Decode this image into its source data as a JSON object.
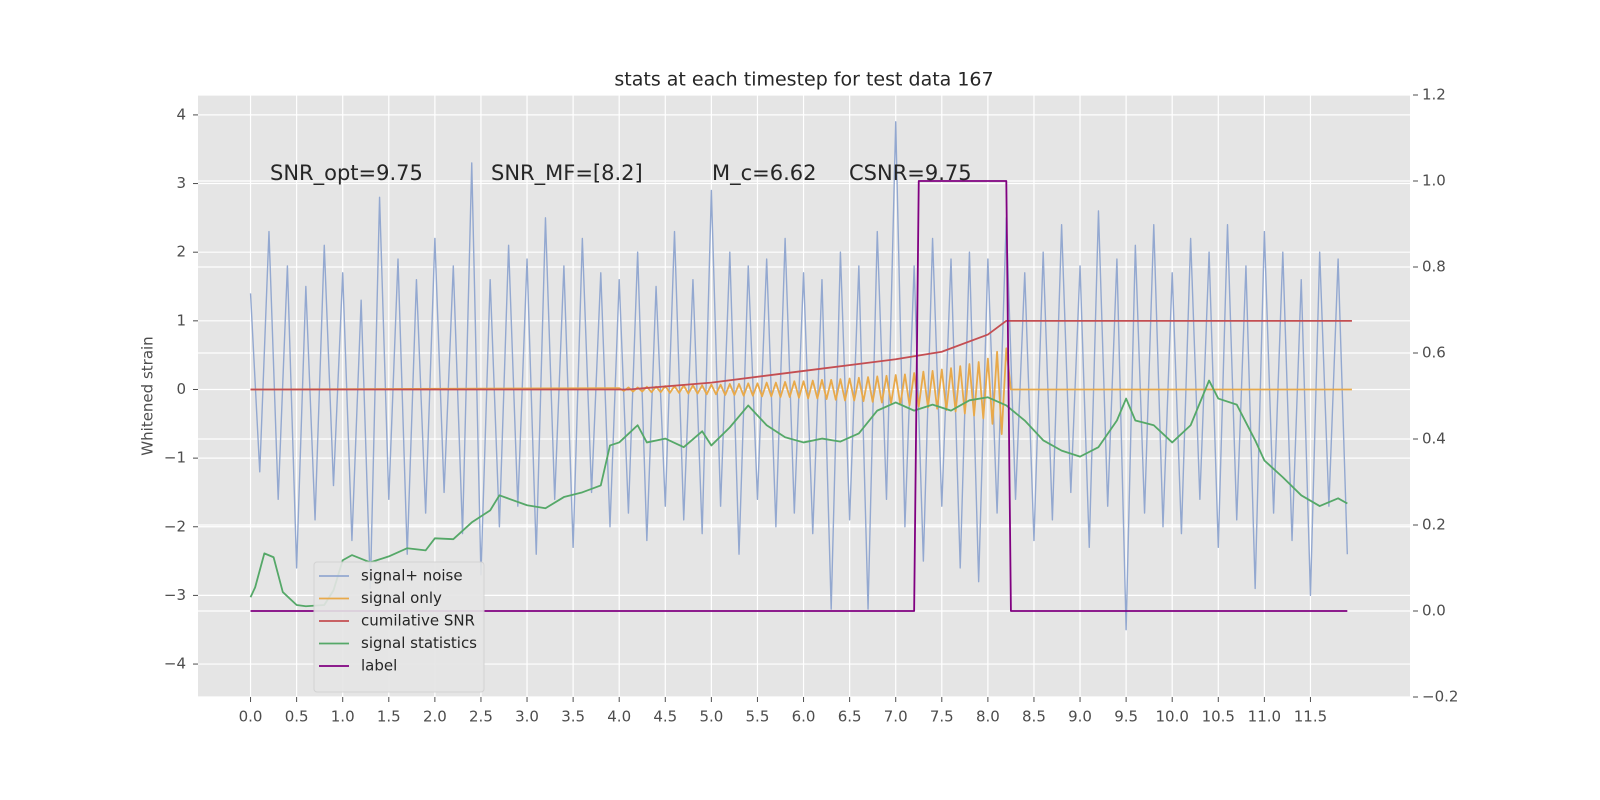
{
  "chart_data": {
    "type": "line",
    "title": "stats at each timestep for test data 167",
    "ylabel": "Whitened strain",
    "annotations": [
      "SNR_opt=9.75",
      "SNR_MF=[8.2]",
      "M_c=6.62",
      "CSNR=9.75"
    ],
    "xlim": [
      -0.57,
      12.58
    ],
    "ylim": [
      -4.48,
      4.29
    ],
    "y2lim": [
      -0.2,
      1.2
    ],
    "xticks": [
      {
        "value": 0,
        "label": "0.0"
      },
      0.5,
      {
        "value": 1,
        "label": "1.0"
      },
      1.5,
      {
        "value": 2,
        "label": "2.0"
      },
      2.5,
      {
        "value": 3,
        "label": "3.0"
      },
      3.5,
      {
        "value": 4,
        "label": "4.0"
      },
      4.5,
      {
        "value": 5,
        "label": "5.0"
      },
      5.5,
      {
        "value": 6,
        "label": "6.0"
      },
      6.5,
      {
        "value": 7,
        "label": "7.0"
      },
      7.5,
      {
        "value": 8,
        "label": "8.0"
      },
      8.5,
      {
        "value": 9,
        "label": "9.0"
      },
      9.5,
      {
        "value": 10,
        "label": "10.0"
      },
      10.5,
      {
        "value": 11,
        "label": "11.0"
      },
      11.5
    ],
    "yticks": [
      {
        "value": -4,
        "label": "−4"
      },
      {
        "value": -3,
        "label": "−3"
      },
      {
        "value": -2,
        "label": "−2"
      },
      {
        "value": -1,
        "label": "−1"
      },
      0,
      1,
      2,
      3,
      4
    ],
    "y2ticks": [
      {
        "value": -0.2,
        "label": "−0.2"
      },
      {
        "value": 0,
        "label": "0.0"
      },
      0.2,
      0.4,
      0.6,
      0.8,
      {
        "value": 1,
        "label": "1.0"
      },
      1.2
    ],
    "grid": true,
    "legend": "lower left",
    "background": "#e5e5e5",
    "series": [
      {
        "name": "signal+ noise",
        "color": "#93a8d0",
        "x": [
          0.0,
          0.1,
          0.2,
          0.3,
          0.4,
          0.5,
          0.6,
          0.7,
          0.8,
          0.9,
          1.0,
          1.1,
          1.2,
          1.3,
          1.4,
          1.5,
          1.6,
          1.7,
          1.8,
          1.9,
          2.0,
          2.1,
          2.2,
          2.3,
          2.4,
          2.5,
          2.6,
          2.7,
          2.8,
          2.9,
          3.0,
          3.1,
          3.2,
          3.3,
          3.4,
          3.5,
          3.6,
          3.7,
          3.8,
          3.9,
          4.0,
          4.1,
          4.2,
          4.3,
          4.4,
          4.5,
          4.6,
          4.7,
          4.8,
          4.9,
          5.0,
          5.1,
          5.2,
          5.3,
          5.4,
          5.5,
          5.6,
          5.7,
          5.8,
          5.9,
          6.0,
          6.1,
          6.2,
          6.3,
          6.4,
          6.5,
          6.6,
          6.7,
          6.8,
          6.9,
          7.0,
          7.1,
          7.2,
          7.3,
          7.4,
          7.5,
          7.6,
          7.7,
          7.8,
          7.9,
          8.0,
          8.1,
          8.2,
          8.3,
          8.4,
          8.5,
          8.6,
          8.7,
          8.8,
          8.9,
          9.0,
          9.1,
          9.2,
          9.3,
          9.4,
          9.5,
          9.6,
          9.7,
          9.8,
          9.9,
          10.0,
          10.1,
          10.2,
          10.3,
          10.4,
          10.5,
          10.6,
          10.7,
          10.8,
          10.9,
          11.0,
          11.1,
          11.2,
          11.3,
          11.4,
          11.5,
          11.6,
          11.7,
          11.8,
          11.9
        ],
        "values": [
          1.4,
          -1.2,
          2.3,
          -1.6,
          1.8,
          -2.6,
          1.5,
          -1.9,
          2.1,
          -1.4,
          1.7,
          -2.2,
          1.3,
          -2.9,
          2.8,
          -1.6,
          1.9,
          -2.4,
          1.6,
          -1.8,
          2.2,
          -1.5,
          1.8,
          -2.1,
          3.3,
          -2.7,
          1.6,
          -2.0,
          2.1,
          -1.7,
          1.9,
          -2.4,
          2.5,
          -1.6,
          1.8,
          -2.3,
          2.2,
          -1.5,
          1.7,
          -2.0,
          1.6,
          -1.8,
          2.0,
          -2.2,
          1.5,
          -1.7,
          2.3,
          -1.9,
          1.6,
          -2.1,
          2.9,
          -1.7,
          2.0,
          -2.4,
          1.8,
          -1.6,
          1.9,
          -2.0,
          2.2,
          -1.8,
          1.7,
          -2.1,
          1.6,
          -3.2,
          2.0,
          -1.9,
          1.8,
          -3.2,
          2.3,
          -1.6,
          3.9,
          -2.0,
          1.8,
          -2.5,
          2.2,
          -1.7,
          1.9,
          -2.6,
          2.0,
          -2.8,
          1.9,
          -1.8,
          2.5,
          -1.6,
          1.7,
          -2.2,
          2.0,
          -1.9,
          2.4,
          -1.5,
          1.8,
          -2.3,
          2.6,
          -1.7,
          1.9,
          -3.5,
          2.1,
          -1.8,
          2.4,
          -2.0,
          1.7,
          -2.1,
          2.2,
          -1.6,
          2.0,
          -2.3,
          2.4,
          -1.9,
          1.8,
          -2.9,
          2.3,
          -1.8,
          2.0,
          -2.2,
          1.6,
          -3.0,
          2.0,
          -1.7,
          1.9,
          -2.4
        ]
      },
      {
        "name": "signal only",
        "color": "#e8a94a",
        "x": [
          0.0,
          4.0,
          4.05,
          4.1,
          4.15,
          4.2,
          4.25,
          4.3,
          4.35,
          4.4,
          4.45,
          4.5,
          4.55,
          4.6,
          4.65,
          4.7,
          4.75,
          4.8,
          4.85,
          4.9,
          4.95,
          5.0,
          5.05,
          5.1,
          5.15,
          5.2,
          5.25,
          5.3,
          5.35,
          5.4,
          5.45,
          5.5,
          5.55,
          5.6,
          5.65,
          5.7,
          5.75,
          5.8,
          5.85,
          5.9,
          5.95,
          6.0,
          6.05,
          6.1,
          6.15,
          6.2,
          6.25,
          6.3,
          6.35,
          6.4,
          6.45,
          6.5,
          6.55,
          6.6,
          6.65,
          6.7,
          6.75,
          6.8,
          6.85,
          6.9,
          6.95,
          7.0,
          7.05,
          7.1,
          7.15,
          7.2,
          7.25,
          7.3,
          7.35,
          7.4,
          7.45,
          7.5,
          7.55,
          7.6,
          7.65,
          7.7,
          7.75,
          7.8,
          7.85,
          7.9,
          7.95,
          8.0,
          8.05,
          8.1,
          8.15,
          8.2,
          8.25,
          11.95
        ],
        "values": [
          0,
          0.02,
          -0.02,
          0.03,
          -0.03,
          0.03,
          -0.03,
          0.04,
          -0.04,
          0.04,
          -0.04,
          0.05,
          -0.05,
          0.05,
          -0.05,
          0.06,
          -0.06,
          0.06,
          -0.06,
          0.06,
          -0.07,
          0.07,
          -0.07,
          0.07,
          -0.08,
          0.08,
          -0.08,
          0.08,
          -0.09,
          0.09,
          -0.09,
          0.09,
          -0.1,
          0.1,
          -0.1,
          0.1,
          -0.11,
          0.11,
          -0.11,
          0.12,
          -0.12,
          0.12,
          -0.13,
          0.13,
          -0.13,
          0.14,
          -0.14,
          0.14,
          -0.15,
          0.15,
          -0.16,
          0.16,
          -0.16,
          0.17,
          -0.17,
          0.18,
          -0.18,
          0.19,
          -0.19,
          0.2,
          -0.2,
          0.21,
          -0.22,
          0.22,
          -0.23,
          0.24,
          -0.25,
          0.26,
          -0.26,
          0.27,
          -0.28,
          0.29,
          -0.3,
          0.31,
          -0.32,
          0.34,
          -0.35,
          0.37,
          -0.38,
          0.4,
          -0.42,
          0.45,
          -0.5,
          0.55,
          -0.65,
          0.6,
          0,
          0
        ]
      },
      {
        "name": "cumilative SNR",
        "color": "#c44e52",
        "x": [
          0.0,
          4.1,
          5.0,
          6.0,
          7.0,
          7.5,
          8.0,
          8.2,
          11.95
        ],
        "values": [
          0,
          0,
          0.1,
          0.27,
          0.44,
          0.55,
          0.8,
          1.0,
          1.0
        ]
      },
      {
        "name": "signal statistics",
        "color": "#55a868",
        "axis": "y2",
        "x": [
          0.0,
          0.05,
          0.15,
          0.25,
          0.35,
          0.5,
          0.6,
          0.8,
          0.9,
          1.0,
          1.1,
          1.3,
          1.5,
          1.7,
          1.9,
          2.0,
          2.2,
          2.4,
          2.6,
          2.7,
          3.0,
          3.2,
          3.4,
          3.6,
          3.8,
          3.9,
          4.0,
          4.2,
          4.3,
          4.5,
          4.7,
          4.9,
          5.0,
          5.2,
          5.4,
          5.6,
          5.8,
          6.0,
          6.2,
          6.4,
          6.6,
          6.8,
          7.0,
          7.2,
          7.4,
          7.6,
          7.8,
          8.0,
          8.2,
          8.4,
          8.6,
          8.8,
          9.0,
          9.2,
          9.4,
          9.5,
          9.6,
          9.8,
          10.0,
          10.2,
          10.4,
          10.5,
          10.7,
          10.9,
          11.0,
          11.2,
          11.4,
          11.6,
          11.8,
          11.9
        ],
        "values": [
          0.032,
          0.055,
          0.134,
          0.125,
          0.044,
          0.014,
          0.011,
          0.014,
          0.048,
          0.118,
          0.13,
          0.113,
          0.127,
          0.146,
          0.141,
          0.169,
          0.167,
          0.206,
          0.234,
          0.269,
          0.246,
          0.239,
          0.265,
          0.276,
          0.292,
          0.385,
          0.392,
          0.432,
          0.392,
          0.401,
          0.381,
          0.418,
          0.385,
          0.427,
          0.478,
          0.432,
          0.404,
          0.392,
          0.401,
          0.394,
          0.413,
          0.466,
          0.485,
          0.466,
          0.48,
          0.466,
          0.49,
          0.497,
          0.478,
          0.443,
          0.397,
          0.373,
          0.359,
          0.381,
          0.443,
          0.494,
          0.443,
          0.432,
          0.392,
          0.432,
          0.536,
          0.494,
          0.48,
          0.397,
          0.35,
          0.311,
          0.269,
          0.244,
          0.262,
          0.25
        ]
      },
      {
        "name": "label",
        "color": "#800080",
        "axis": "y2",
        "x": [
          0.0,
          7.2,
          7.25,
          8.2,
          8.25,
          11.9
        ],
        "values": [
          0,
          0,
          1,
          1,
          0,
          0
        ]
      }
    ]
  }
}
